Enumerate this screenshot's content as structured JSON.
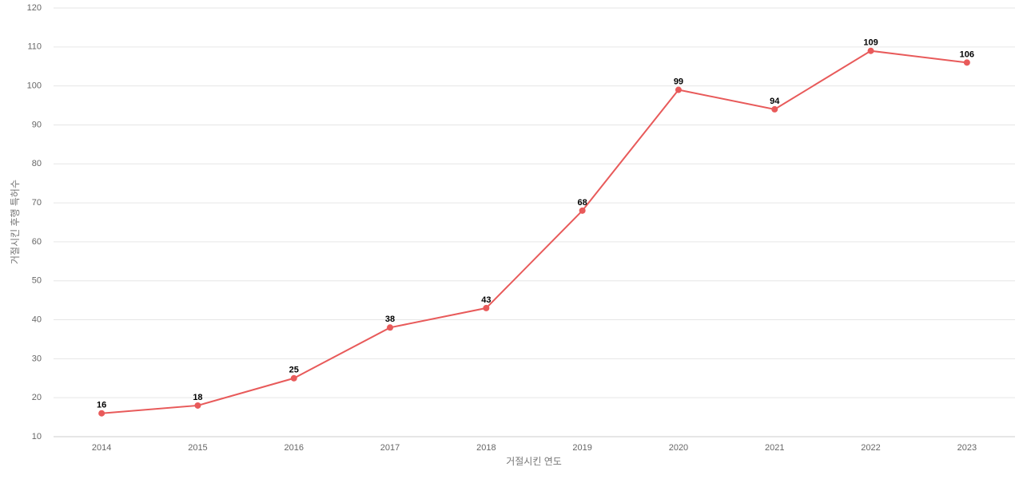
{
  "chart_data": {
    "type": "line",
    "x_label": "거절시킨 연도",
    "y_label": "거절시킨 후행 특허수",
    "categories": [
      "2014",
      "2015",
      "2016",
      "2017",
      "2018",
      "2019",
      "2020",
      "2021",
      "2022",
      "2023"
    ],
    "values": [
      16,
      18,
      25,
      38,
      43,
      68,
      99,
      94,
      109,
      106
    ],
    "color": "#e85a5a",
    "ylim": [
      10,
      120
    ],
    "yticks": [
      10,
      20,
      30,
      40,
      50,
      60,
      70,
      80,
      90,
      100,
      110,
      120
    ],
    "grid": true
  }
}
